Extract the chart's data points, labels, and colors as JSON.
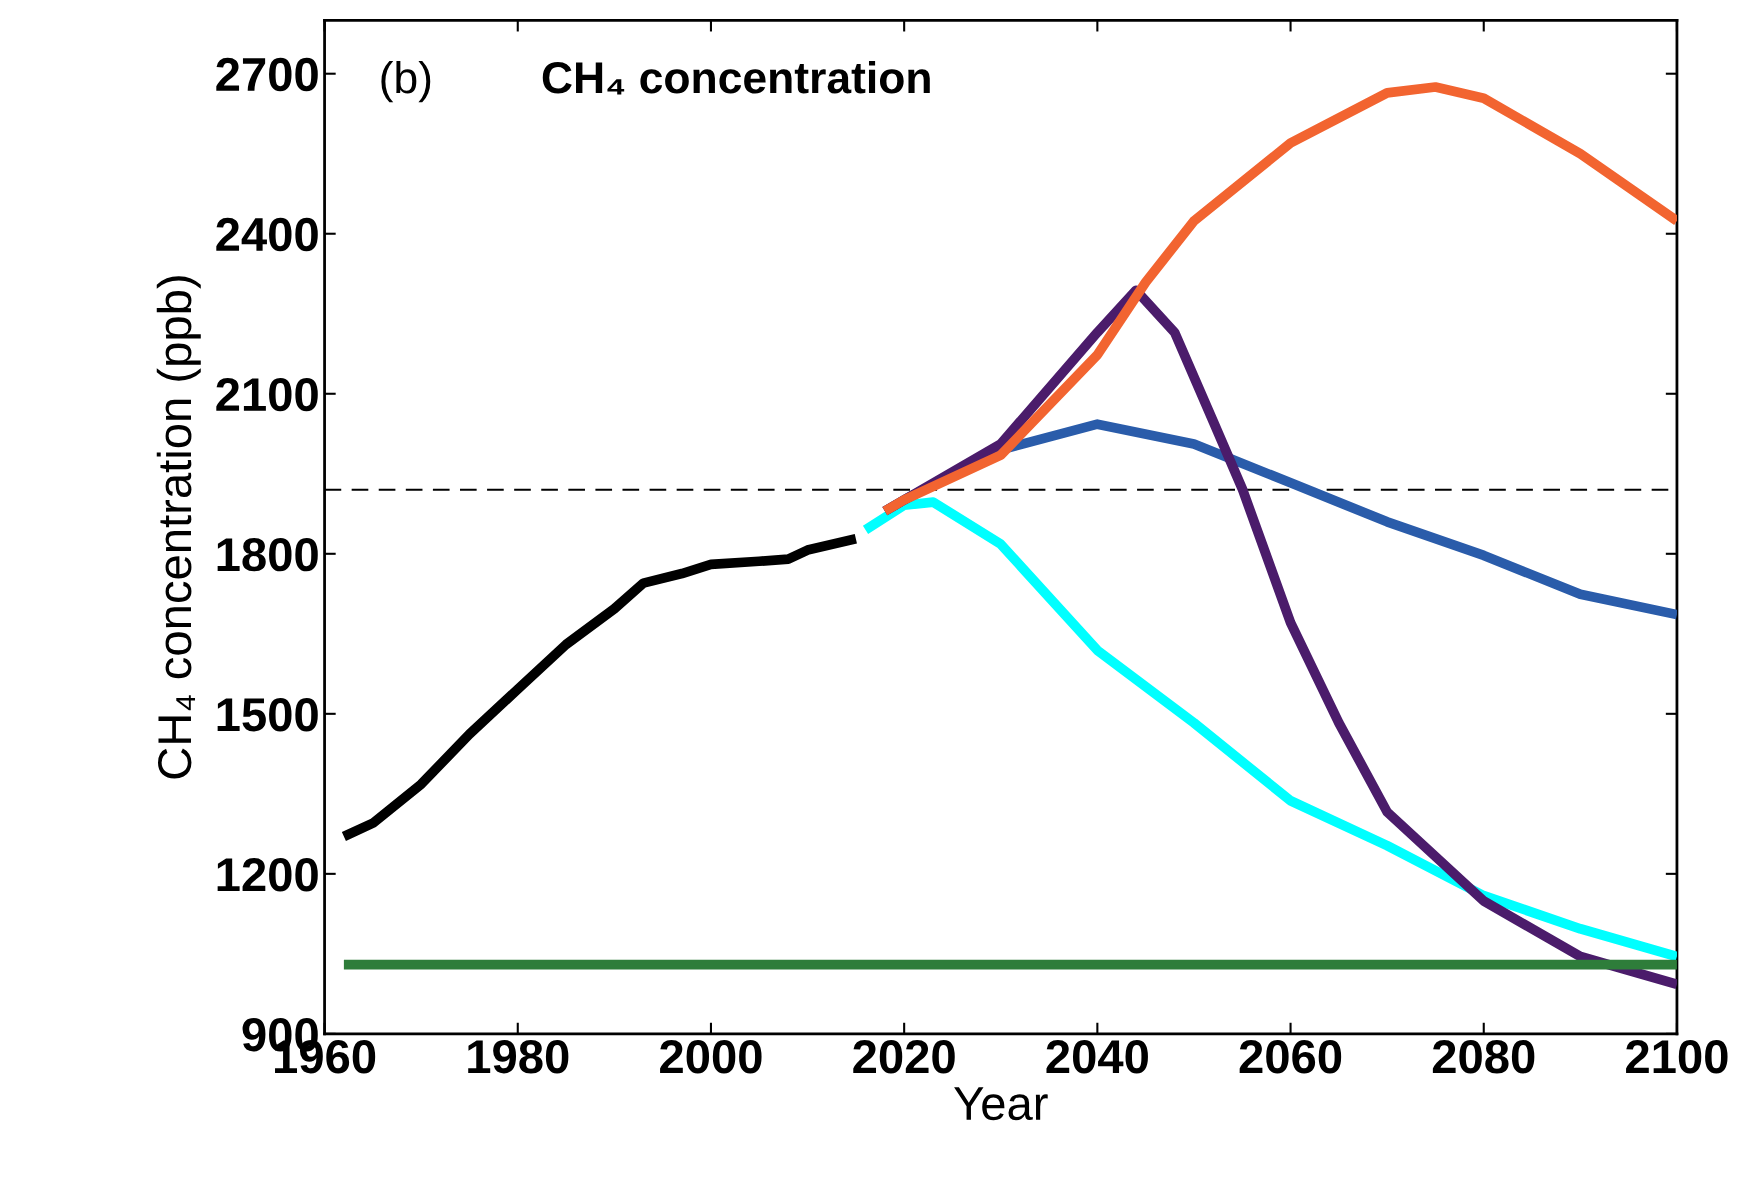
{
  "chart_data": {
    "type": "line",
    "title": "CH₄ concentration",
    "xlabel": "Year",
    "ylabel": "CH₄ concentration (ppb)",
    "annotations": [
      "(b)"
    ],
    "xlim": [
      1960,
      2100
    ],
    "xticks": [
      1960,
      1980,
      2000,
      2020,
      2040,
      2060,
      2080,
      2100
    ],
    "ylim": [
      900,
      2800
    ],
    "yticks": [
      900,
      1200,
      1500,
      1800,
      2100,
      2400,
      2700
    ],
    "grid": false,
    "legend": false,
    "marker": "none",
    "line_style": "solid",
    "ref_lines": [
      {
        "axis": "y",
        "value": 1920,
        "label": null,
        "color": "#000000",
        "line_style": "dashed"
      }
    ],
    "series": [
      {
        "color": "#000000",
        "x": [
          1962,
          1965,
          1970,
          1975,
          1980,
          1985,
          1990,
          1993,
          1997,
          2000,
          2005,
          2008,
          2010,
          2015
        ],
        "values": [
          1270,
          1295,
          1368,
          1462,
          1546,
          1630,
          1697,
          1745,
          1763,
          1780,
          1786,
          1790,
          1807,
          1828
        ]
      },
      {
        "color": "#00ffff",
        "x": [
          2016,
          2020,
          2023,
          2030,
          2040,
          2050,
          2060,
          2070,
          2080,
          2090,
          2100
        ],
        "values": [
          1845,
          1891,
          1897,
          1818,
          1619,
          1483,
          1337,
          1253,
          1159,
          1097,
          1045
        ]
      },
      {
        "color": "#2a5caa",
        "x": [
          2018,
          2020,
          2030,
          2040,
          2050,
          2060,
          2070,
          2080,
          2090,
          2100
        ],
        "values": [
          1880,
          1901,
          1995,
          2043,
          2006,
          1933,
          1860,
          1797,
          1724,
          1686
        ]
      },
      {
        "color": "#4b1c6b",
        "x": [
          2018,
          2020,
          2030,
          2040,
          2044,
          2048,
          2052,
          2055,
          2060,
          2065,
          2070,
          2080,
          2090,
          2100
        ],
        "values": [
          1880,
          1901,
          2006,
          2215,
          2294,
          2215,
          2048,
          1922,
          1671,
          1483,
          1316,
          1149,
          1045,
          993
        ]
      },
      {
        "color": "#f26430",
        "x": [
          2018,
          2020,
          2030,
          2040,
          2045,
          2050,
          2060,
          2070,
          2075,
          2080,
          2090,
          2100
        ],
        "values": [
          1880,
          1901,
          1985,
          2173,
          2309,
          2424,
          2570,
          2664,
          2675,
          2654,
          2550,
          2424
        ]
      },
      {
        "color": "#2e7d3a",
        "x": [
          1962,
          2100
        ],
        "values": [
          1030,
          1030
        ]
      }
    ]
  }
}
